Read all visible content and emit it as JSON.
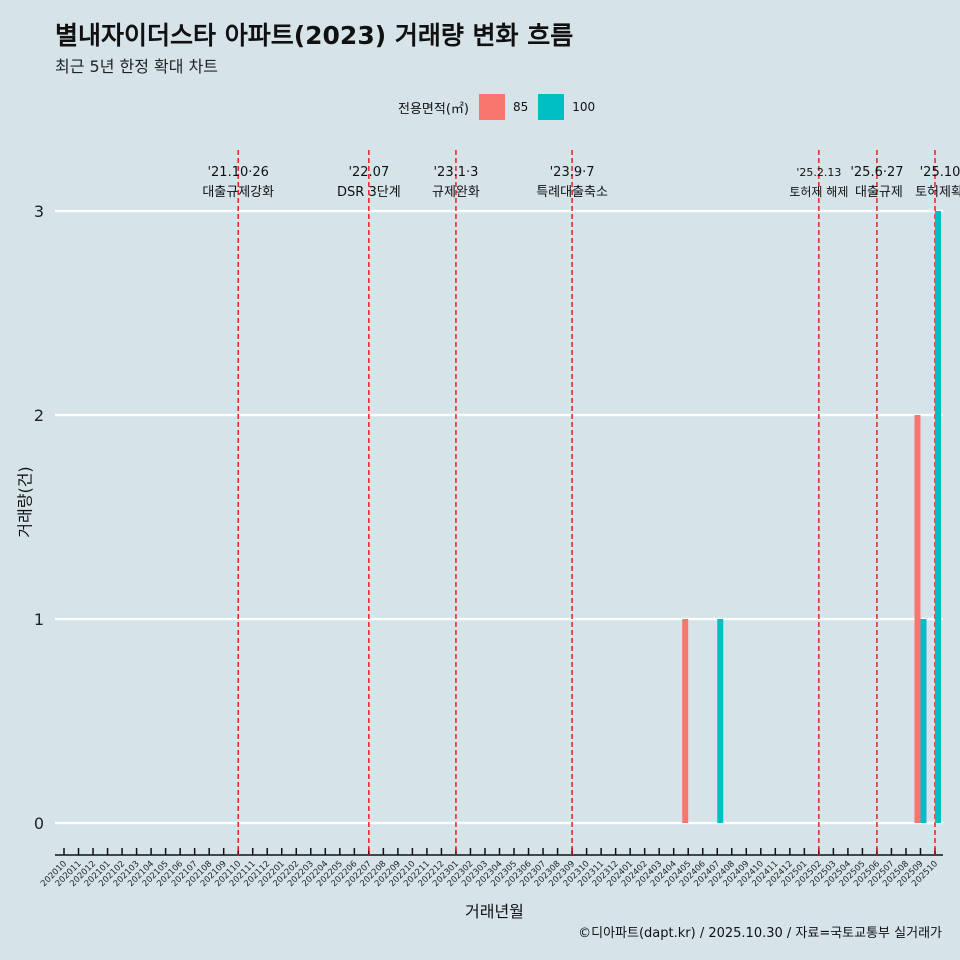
{
  "title": "별내자이더스타 아파트(2023) 거래량 변화 흐름",
  "subtitle": "최근 5년 한정 확대 차트",
  "caption": "©디아파트(dapt.kr) / 2025.10.30 / 자료=국토교통부 실거래가",
  "chart_data": {
    "type": "bar",
    "xlabel": "거래년월",
    "ylabel": "거래량(건)",
    "ylim": [
      0,
      3
    ],
    "yticks": [
      "0",
      "1",
      "2",
      "3"
    ],
    "legend": {
      "title": "전용면적(㎡)",
      "position": "top",
      "entries": [
        "85",
        "100"
      ]
    },
    "colors": {
      "85": "#f8766d",
      "100": "#00bfc4"
    },
    "categories": [
      "202010",
      "202011",
      "202012",
      "202101",
      "202102",
      "202103",
      "202104",
      "202105",
      "202106",
      "202107",
      "202108",
      "202109",
      "202110",
      "202111",
      "202112",
      "202201",
      "202202",
      "202203",
      "202204",
      "202205",
      "202206",
      "202207",
      "202208",
      "202209",
      "202210",
      "202211",
      "202212",
      "202301",
      "202302",
      "202303",
      "202304",
      "202305",
      "202306",
      "202307",
      "202308",
      "202309",
      "202310",
      "202311",
      "202312",
      "202401",
      "202402",
      "202403",
      "202404",
      "202405",
      "202406",
      "202407",
      "202408",
      "202409",
      "202410",
      "202411",
      "202412",
      "202501",
      "202502",
      "202503",
      "202504",
      "202505",
      "202506",
      "202507",
      "202508",
      "202509",
      "202510"
    ],
    "bars": [
      {
        "month": "202405",
        "series": "85",
        "value": 1
      },
      {
        "month": "202407",
        "series": "100",
        "value": 1
      },
      {
        "month": "202509",
        "series": "85",
        "value": 2
      },
      {
        "month": "202509",
        "series": "100",
        "value": 1
      },
      {
        "month": "202510",
        "series": "100",
        "value": 3
      }
    ],
    "events": [
      {
        "month": "202110",
        "date": "'21.10·26",
        "label": "대출규제강화"
      },
      {
        "month": "202207",
        "date": "'22.07",
        "label": "DSR 3단계"
      },
      {
        "month": "202301",
        "date": "'23.1·3",
        "label": "규제완화"
      },
      {
        "month": "202309",
        "date": "'23.9·7",
        "label": "특례대출축소"
      },
      {
        "month": "202502",
        "date": "'25.2.13",
        "label": "토허제 해제"
      },
      {
        "month": "202506",
        "date": "'25.6·27",
        "label": "대출규제"
      },
      {
        "month": "202510",
        "date": "'25.10",
        "label": "토허제확대"
      }
    ]
  }
}
